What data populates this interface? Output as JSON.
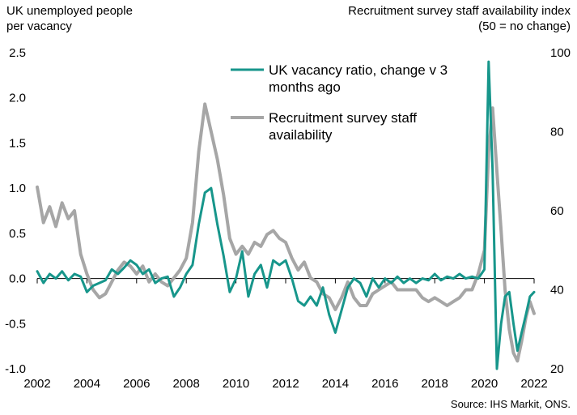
{
  "chart_data": {
    "type": "line",
    "left_axis_title": [
      "UK unemployed people",
      "per vacancy"
    ],
    "right_axis_title": [
      "Recruitment survey staff availability index",
      "(50 = no change)"
    ],
    "source": "Source: IHS Markit, ONS.",
    "x_ticks": [
      "2002",
      "2004",
      "2006",
      "2008",
      "2010",
      "2012",
      "2014",
      "2016",
      "2018",
      "2020",
      "2022"
    ],
    "ylim_left": [
      -1.0,
      2.5
    ],
    "left_ticks": [
      "2.5",
      "2.0",
      "1.5",
      "1.0",
      "0.5",
      "0.0",
      "-0.5",
      "-1.0"
    ],
    "ylim_right": [
      20,
      100
    ],
    "right_ticks": [
      "100",
      "80",
      "60",
      "40",
      "20"
    ],
    "legend_position": "top-center",
    "series": [
      {
        "name": "UK vacancy ratio, change v 3 months ago",
        "axis": "left",
        "color": "#17968b",
        "x": [
          2002.0,
          2002.25,
          2002.5,
          2002.75,
          2003.0,
          2003.25,
          2003.5,
          2003.75,
          2004.0,
          2004.25,
          2004.5,
          2004.75,
          2005.0,
          2005.25,
          2005.5,
          2005.75,
          2006.0,
          2006.25,
          2006.5,
          2006.75,
          2007.0,
          2007.25,
          2007.5,
          2007.75,
          2008.0,
          2008.25,
          2008.5,
          2008.75,
          2009.0,
          2009.25,
          2009.5,
          2009.75,
          2010.0,
          2010.25,
          2010.5,
          2010.75,
          2011.0,
          2011.25,
          2011.5,
          2011.75,
          2012.0,
          2012.25,
          2012.5,
          2012.75,
          2013.0,
          2013.25,
          2013.5,
          2013.75,
          2014.0,
          2014.25,
          2014.5,
          2014.75,
          2015.0,
          2015.25,
          2015.5,
          2015.75,
          2016.0,
          2016.25,
          2016.5,
          2016.75,
          2017.0,
          2017.25,
          2017.5,
          2017.75,
          2018.0,
          2018.25,
          2018.5,
          2018.75,
          2019.0,
          2019.25,
          2019.5,
          2019.75,
          2020.0,
          2020.17,
          2020.33,
          2020.5,
          2020.67,
          2020.83,
          2021.0,
          2021.17,
          2021.33,
          2021.5,
          2021.67,
          2021.83,
          2022.0
        ],
        "y": [
          0.08,
          -0.05,
          0.05,
          0.0,
          0.08,
          -0.02,
          0.05,
          0.02,
          -0.15,
          -0.08,
          -0.05,
          -0.02,
          0.1,
          0.05,
          0.12,
          0.2,
          0.15,
          0.05,
          0.1,
          -0.05,
          0.0,
          0.02,
          -0.2,
          -0.1,
          0.05,
          0.15,
          0.6,
          0.95,
          1.0,
          0.6,
          0.25,
          -0.15,
          0.0,
          0.3,
          -0.2,
          0.05,
          0.15,
          -0.1,
          0.2,
          0.15,
          0.2,
          0.0,
          -0.25,
          -0.3,
          -0.2,
          -0.3,
          -0.1,
          -0.4,
          -0.6,
          -0.35,
          -0.1,
          0.0,
          -0.05,
          -0.2,
          0.0,
          -0.1,
          0.0,
          -0.05,
          0.02,
          -0.05,
          0.0,
          -0.05,
          0.0,
          -0.02,
          0.05,
          -0.02,
          0.02,
          0.0,
          0.05,
          0.0,
          0.02,
          0.0,
          0.1,
          2.4,
          1.2,
          -1.0,
          -0.5,
          -0.2,
          -0.15,
          -0.5,
          -0.8,
          -0.6,
          -0.4,
          -0.2,
          -0.15
        ]
      },
      {
        "name": "Recruitment survey staff availability",
        "axis": "right",
        "color": "#a6a6a6",
        "x": [
          2002.0,
          2002.25,
          2002.5,
          2002.75,
          2003.0,
          2003.25,
          2003.5,
          2003.75,
          2004.0,
          2004.25,
          2004.5,
          2004.75,
          2005.0,
          2005.25,
          2005.5,
          2005.75,
          2006.0,
          2006.25,
          2006.5,
          2006.75,
          2007.0,
          2007.25,
          2007.5,
          2007.75,
          2008.0,
          2008.25,
          2008.5,
          2008.75,
          2009.0,
          2009.25,
          2009.5,
          2009.75,
          2010.0,
          2010.25,
          2010.5,
          2010.75,
          2011.0,
          2011.25,
          2011.5,
          2011.75,
          2012.0,
          2012.25,
          2012.5,
          2012.75,
          2013.0,
          2013.25,
          2013.5,
          2013.75,
          2014.0,
          2014.25,
          2014.5,
          2014.75,
          2015.0,
          2015.25,
          2015.5,
          2015.75,
          2016.0,
          2016.25,
          2016.5,
          2016.75,
          2017.0,
          2017.25,
          2017.5,
          2017.75,
          2018.0,
          2018.25,
          2018.5,
          2018.75,
          2019.0,
          2019.25,
          2019.5,
          2019.75,
          2020.0,
          2020.17,
          2020.33,
          2020.5,
          2020.67,
          2020.83,
          2021.0,
          2021.17,
          2021.33,
          2021.5,
          2021.67,
          2021.83,
          2022.0
        ],
        "y": [
          66,
          57,
          61,
          56,
          62,
          58,
          60,
          49,
          44,
          40,
          38,
          39,
          42,
          45,
          47,
          46,
          44,
          46,
          42,
          44,
          42,
          41,
          43,
          45,
          48,
          57,
          75,
          87,
          80,
          73,
          64,
          53,
          49,
          51,
          49,
          52,
          51,
          54,
          55,
          53,
          52,
          48,
          45,
          47,
          43,
          42,
          39,
          38,
          35,
          38,
          42,
          38,
          36,
          36,
          39,
          40,
          41,
          42,
          40,
          40,
          40,
          40,
          38,
          37,
          38,
          37,
          36,
          37,
          38,
          40,
          40,
          44,
          50,
          75,
          86,
          70,
          55,
          40,
          30,
          24,
          22,
          27,
          33,
          37,
          34
        ]
      }
    ]
  }
}
